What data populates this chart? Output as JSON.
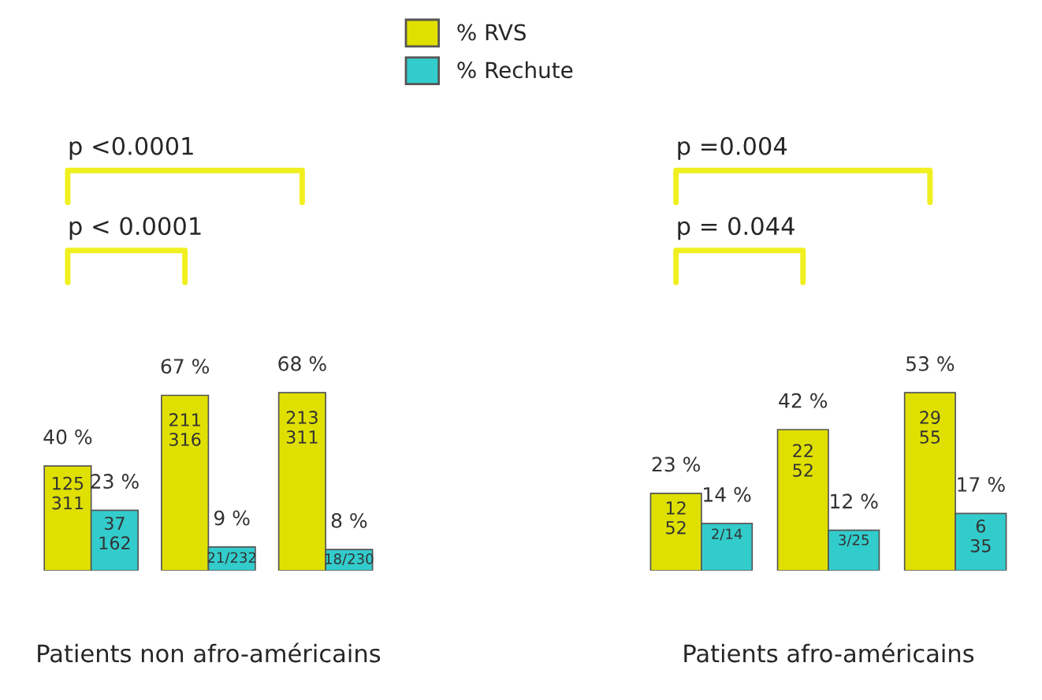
{
  "chart_data": [
    {
      "type": "bar",
      "categories": [
        null,
        null,
        null
      ],
      "xlabel": "Patients non afro-américains",
      "legend": "top",
      "series": [
        {
          "name": "% RVS",
          "color": "#e0e000",
          "values": [
            40,
            67,
            68
          ],
          "value_labels": [
            "40 %",
            "67 %",
            "68 %"
          ]
        },
        {
          "name": "% Rechute",
          "color": "#33cccc",
          "values": [
            23,
            9,
            8
          ],
          "value_labels": [
            "23 %",
            "9 %",
            "8 %"
          ]
        }
      ],
      "annotations": [
        "p < 0.0001",
        "p <0.0001",
        "125\n311",
        "37\n162",
        "211\n316",
        "21/232",
        "213\n311",
        "18/230"
      ]
    },
    {
      "type": "bar",
      "categories": [
        null,
        null,
        null
      ],
      "xlabel": "Patients afro-américains",
      "series": [
        {
          "color": "#e0e000",
          "values": [
            23,
            42,
            53
          ],
          "value_labels": [
            "23 %",
            "42 %",
            "53 %"
          ]
        },
        {
          "color": "#33cccc",
          "values": [
            14,
            12,
            17
          ],
          "value_labels": [
            "14 %",
            "12 %",
            "17 %"
          ]
        }
      ],
      "annotations": [
        "p = 0.044",
        "p =0.004",
        "12\n52",
        "2/14",
        "22\n52",
        "3/25",
        "29\n55",
        "6\n35"
      ]
    }
  ]
}
